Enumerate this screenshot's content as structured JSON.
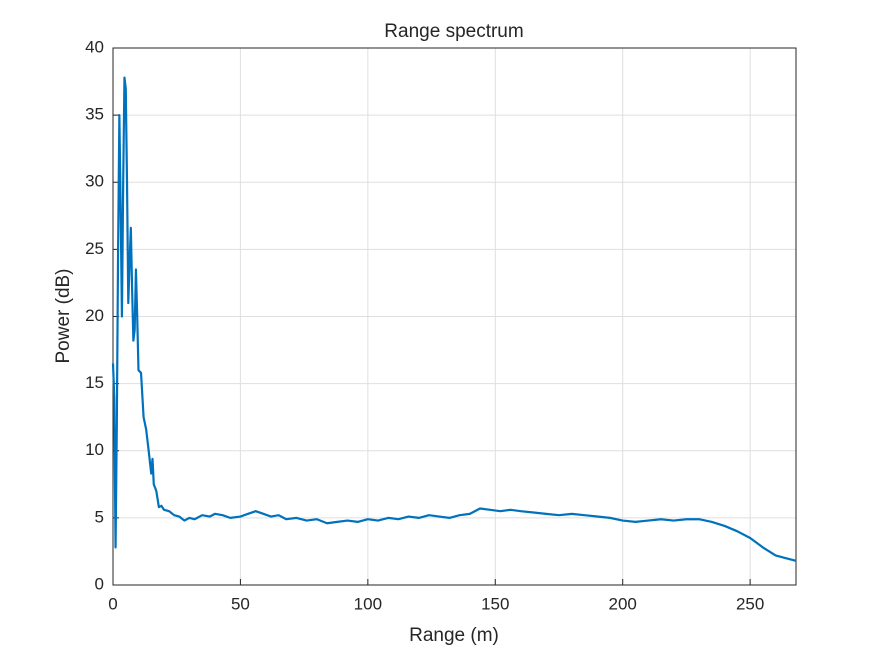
{
  "chart_data": {
    "type": "line",
    "title": "Range spectrum",
    "xlabel": "Range (m)",
    "ylabel": "Power (dB)",
    "x": [
      0,
      0.5,
      1,
      1.5,
      2,
      2.5,
      3,
      3.5,
      4,
      4.5,
      5,
      5.5,
      6,
      6.5,
      7,
      7.5,
      8,
      8.5,
      9,
      9.5,
      10,
      11,
      12,
      13,
      14,
      15,
      15.5,
      16,
      17,
      18,
      19,
      20,
      22,
      24,
      26,
      28,
      30,
      32,
      35,
      38,
      40,
      43,
      46,
      50,
      53,
      56,
      59,
      62,
      65,
      68,
      72,
      76,
      80,
      84,
      88,
      92,
      96,
      100,
      104,
      108,
      112,
      116,
      120,
      124,
      128,
      132,
      136,
      140,
      144,
      148,
      152,
      156,
      160,
      165,
      170,
      175,
      180,
      185,
      190,
      195,
      200,
      205,
      210,
      215,
      220,
      225,
      230,
      235,
      240,
      245,
      250,
      255,
      260,
      264,
      268
    ],
    "series": [
      {
        "name": "Power",
        "color": "#0072bd",
        "values": [
          16.5,
          14,
          2.8,
          12,
          25,
          35,
          28,
          20,
          30,
          37.8,
          37,
          30,
          21,
          24,
          26.6,
          22,
          18.2,
          19,
          23.5,
          20,
          16,
          15.8,
          12.5,
          11.6,
          10,
          8.3,
          9.4,
          7.5,
          7,
          5.8,
          5.9,
          5.6,
          5.5,
          5.2,
          5.1,
          4.8,
          5.0,
          4.9,
          5.2,
          5.1,
          5.3,
          5.2,
          5.0,
          5.1,
          5.3,
          5.5,
          5.3,
          5.1,
          5.2,
          4.9,
          5.0,
          4.8,
          4.9,
          4.6,
          4.7,
          4.8,
          4.7,
          4.9,
          4.8,
          5.0,
          4.9,
          5.1,
          5.0,
          5.2,
          5.1,
          5.0,
          5.2,
          5.3,
          5.7,
          5.6,
          5.5,
          5.6,
          5.5,
          5.4,
          5.3,
          5.2,
          5.3,
          5.2,
          5.1,
          5.0,
          4.8,
          4.7,
          4.8,
          4.9,
          4.8,
          4.9,
          4.9,
          4.7,
          4.4,
          4.0,
          3.5,
          2.8,
          2.2,
          2.0,
          1.8
        ]
      }
    ],
    "xlim": [
      0,
      268
    ],
    "xticks": [
      0,
      50,
      100,
      150,
      200,
      250
    ],
    "ylim": [
      0,
      40
    ],
    "yticks": [
      0,
      5,
      10,
      15,
      20,
      25,
      30,
      35,
      40
    ],
    "grid": true
  }
}
